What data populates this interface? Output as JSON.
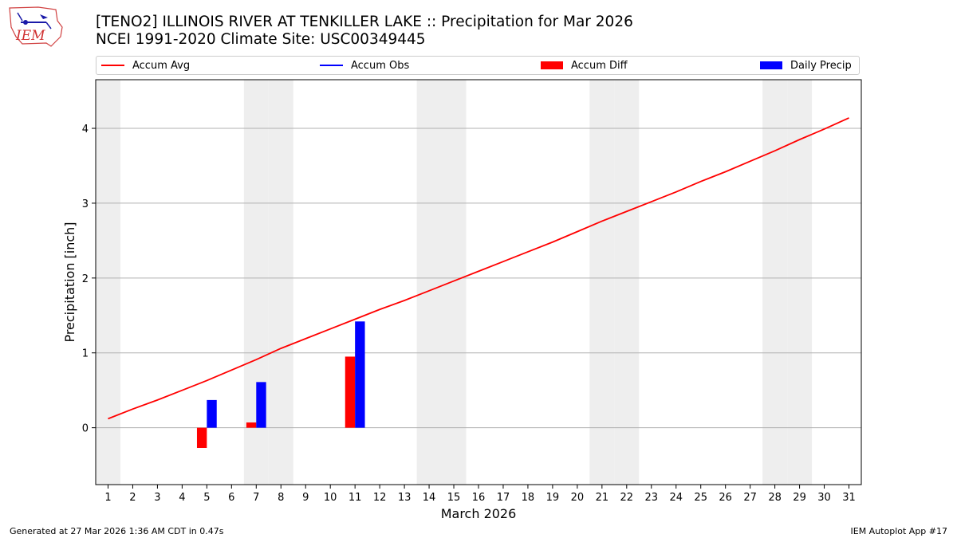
{
  "header": {
    "title_line1": "[TENO2] ILLINOIS RIVER  AT TENKILLER LAKE :: Precipitation for Mar 2026",
    "title_line2": "NCEI 1991-2020 Climate Site: USC00349445",
    "logo_text": "IEM"
  },
  "legend": [
    {
      "label": "Accum Avg",
      "color": "#ff0000",
      "kind": "line"
    },
    {
      "label": "Accum Obs",
      "color": "#0000ff",
      "kind": "line"
    },
    {
      "label": "Accum Diff",
      "color": "#ff0000",
      "kind": "bar"
    },
    {
      "label": "Daily Precip",
      "color": "#0000ff",
      "kind": "bar"
    }
  ],
  "footer": {
    "generated": "Generated at 27 Mar 2026 1:36 AM CDT in 0.47s",
    "app": "IEM Autoplot App #17"
  },
  "chart_data": {
    "type": "bar",
    "xlabel": "March 2026",
    "ylabel": "Precipitation [inch]",
    "xlim": [
      0.5,
      31.5
    ],
    "ylim": [
      -0.76,
      4.65
    ],
    "yticks": [
      0,
      1,
      2,
      3,
      4
    ],
    "days": [
      1,
      2,
      3,
      4,
      5,
      6,
      7,
      8,
      9,
      10,
      11,
      12,
      13,
      14,
      15,
      16,
      17,
      18,
      19,
      20,
      21,
      22,
      23,
      24,
      25,
      26,
      27,
      28,
      29,
      30,
      31
    ],
    "weekend_days": [
      1,
      7,
      8,
      14,
      15,
      21,
      22,
      28,
      29
    ],
    "grid": "horizontal",
    "series": [
      {
        "name": "Accum Avg",
        "kind": "line",
        "color": "#ff0000",
        "values": [
          0.12,
          0.25,
          0.37,
          0.5,
          0.63,
          0.77,
          0.91,
          1.06,
          1.19,
          1.32,
          1.45,
          1.58,
          1.7,
          1.83,
          1.96,
          2.09,
          2.22,
          2.35,
          2.48,
          2.62,
          2.76,
          2.89,
          3.02,
          3.15,
          3.29,
          3.42,
          3.56,
          3.7,
          3.85,
          3.99,
          4.14
        ]
      },
      {
        "name": "Accum Diff",
        "kind": "bar",
        "color": "#ff0000",
        "points": [
          {
            "day": 5,
            "value": -0.27
          },
          {
            "day": 7,
            "value": 0.07
          },
          {
            "day": 11,
            "value": 0.95
          }
        ]
      },
      {
        "name": "Daily Precip",
        "kind": "bar",
        "color": "#0000ff",
        "points": [
          {
            "day": 5,
            "value": 0.37
          },
          {
            "day": 7,
            "value": 0.61
          },
          {
            "day": 11,
            "value": 1.42
          }
        ]
      }
    ]
  }
}
